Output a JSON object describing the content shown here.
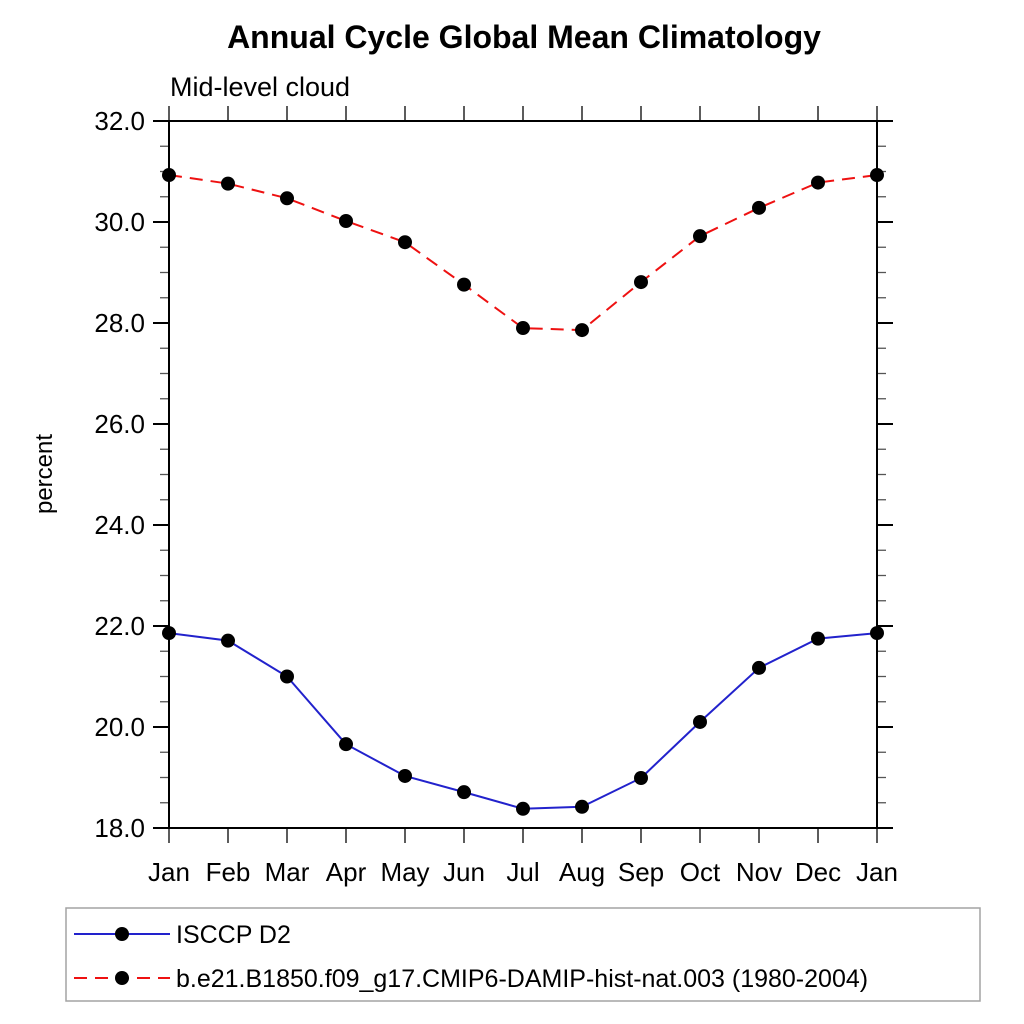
{
  "page": {
    "background": "#ffffff"
  },
  "chart_data": {
    "type": "line",
    "title": "Annual Cycle Global Mean Climatology",
    "subtitle": "Mid-level cloud",
    "ylabel": "percent",
    "xlabel": "",
    "x_tick_labels": [
      "Jan",
      "Feb",
      "Mar",
      "Apr",
      "May",
      "Jun",
      "Jul",
      "Aug",
      "Sep",
      "Oct",
      "Nov",
      "Dec",
      "Jan"
    ],
    "ylim": [
      18.0,
      32.0
    ],
    "y_major_ticks": [
      18,
      20,
      22,
      24,
      26,
      28,
      30,
      32
    ],
    "y_tick_labels": [
      "18.0",
      "20.0",
      "22.0",
      "24.0",
      "26.0",
      "28.0",
      "30.0",
      "32.0"
    ],
    "y_minor_step": 0.5,
    "grid": false,
    "frame_color": "#000000",
    "legend": {
      "position": "bottom-left",
      "box_border_color": "#a3a3a3"
    },
    "series": [
      {
        "name": "ISCCP D2",
        "line_color": "#2222cc",
        "line_style": "solid",
        "marker": "filled-circle",
        "marker_color": "#000000",
        "values": [
          21.86,
          21.71,
          21.0,
          19.66,
          19.03,
          18.71,
          18.38,
          18.42,
          18.99,
          20.1,
          21.17,
          21.75,
          21.86
        ]
      },
      {
        "name": "b.e21.B1850.f09_g17.CMIP6-DAMIP-hist-nat.003 (1980-2004)",
        "line_color": "#ee1111",
        "line_style": "dashed",
        "marker": "filled-circle",
        "marker_color": "#000000",
        "values": [
          30.93,
          30.76,
          30.47,
          30.02,
          29.6,
          28.76,
          27.9,
          27.86,
          28.81,
          29.72,
          30.28,
          30.78,
          30.93
        ]
      }
    ]
  }
}
